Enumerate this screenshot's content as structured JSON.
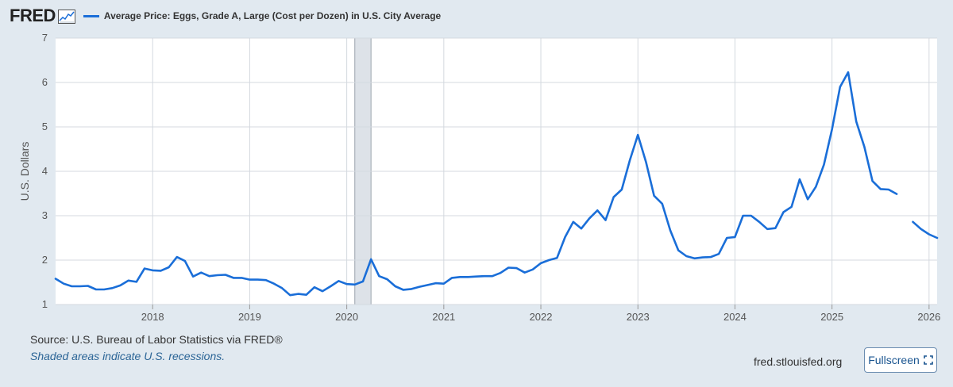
{
  "header": {
    "logo": "FRED",
    "legend_label": "Average Price: Eggs, Grade A, Large (Cost per Dozen) in U.S. City Average"
  },
  "footer": {
    "source": "U.S. Bureau of Labor Statistics via FRED®",
    "source_prefix": "Source: ",
    "shaded_note": "Shaded areas indicate U.S. recessions.",
    "site": "fred.stlouisfed.org",
    "fullscreen_label": "Fullscreen"
  },
  "colors": {
    "line": "#1a6ed8",
    "background": "#e1e9f0",
    "plot": "#ffffff",
    "recession": "#dde2e8"
  },
  "chart_data": {
    "type": "line",
    "title": "Average Price: Eggs, Grade A, Large (Cost per Dozen) in U.S. City Average",
    "xlabel": "",
    "ylabel": "U.S. Dollars",
    "ylim": [
      1,
      7
    ],
    "xlim": [
      2017.0,
      2026.083
    ],
    "yticks": [
      1,
      2,
      3,
      4,
      5,
      6,
      7
    ],
    "xticks": [
      "2018",
      "2019",
      "2020",
      "2021",
      "2022",
      "2023",
      "2024",
      "2025",
      "2026"
    ],
    "grid": true,
    "recession": {
      "start": 2020.083,
      "end": 2020.25
    },
    "series": [
      {
        "name": "Average Price: Eggs, Grade A, Large (Cost per Dozen) in U.S. City Average",
        "start": 2017.0,
        "step_months": 1,
        "values": [
          1.58,
          1.47,
          1.41,
          1.41,
          1.42,
          1.34,
          1.34,
          1.37,
          1.43,
          1.54,
          1.51,
          1.81,
          1.77,
          1.76,
          1.84,
          2.07,
          1.98,
          1.63,
          1.72,
          1.64,
          1.66,
          1.67,
          1.6,
          1.6,
          1.56,
          1.56,
          1.55,
          1.47,
          1.37,
          1.21,
          1.24,
          1.22,
          1.39,
          1.3,
          1.41,
          1.53,
          1.46,
          1.45,
          1.52,
          2.02,
          1.64,
          1.57,
          1.41,
          1.33,
          1.35,
          1.4,
          1.44,
          1.48,
          1.47,
          1.6,
          1.62,
          1.62,
          1.63,
          1.64,
          1.64,
          1.71,
          1.83,
          1.82,
          1.72,
          1.79,
          1.93,
          2.0,
          2.05,
          2.52,
          2.86,
          2.71,
          2.94,
          3.12,
          2.9,
          3.42,
          3.59,
          4.25,
          4.82,
          4.21,
          3.45,
          3.27,
          2.67,
          2.22,
          2.09,
          2.04,
          2.06,
          2.07,
          2.14,
          2.5,
          2.52,
          3.0,
          3.0,
          2.86,
          2.7,
          2.72,
          3.08,
          3.2,
          3.82,
          3.37,
          3.65,
          4.15,
          4.95,
          5.9,
          6.23,
          5.12,
          4.55,
          3.78,
          3.6,
          3.59,
          3.49,
          null,
          2.86,
          2.7,
          2.58,
          2.5
        ]
      }
    ]
  }
}
